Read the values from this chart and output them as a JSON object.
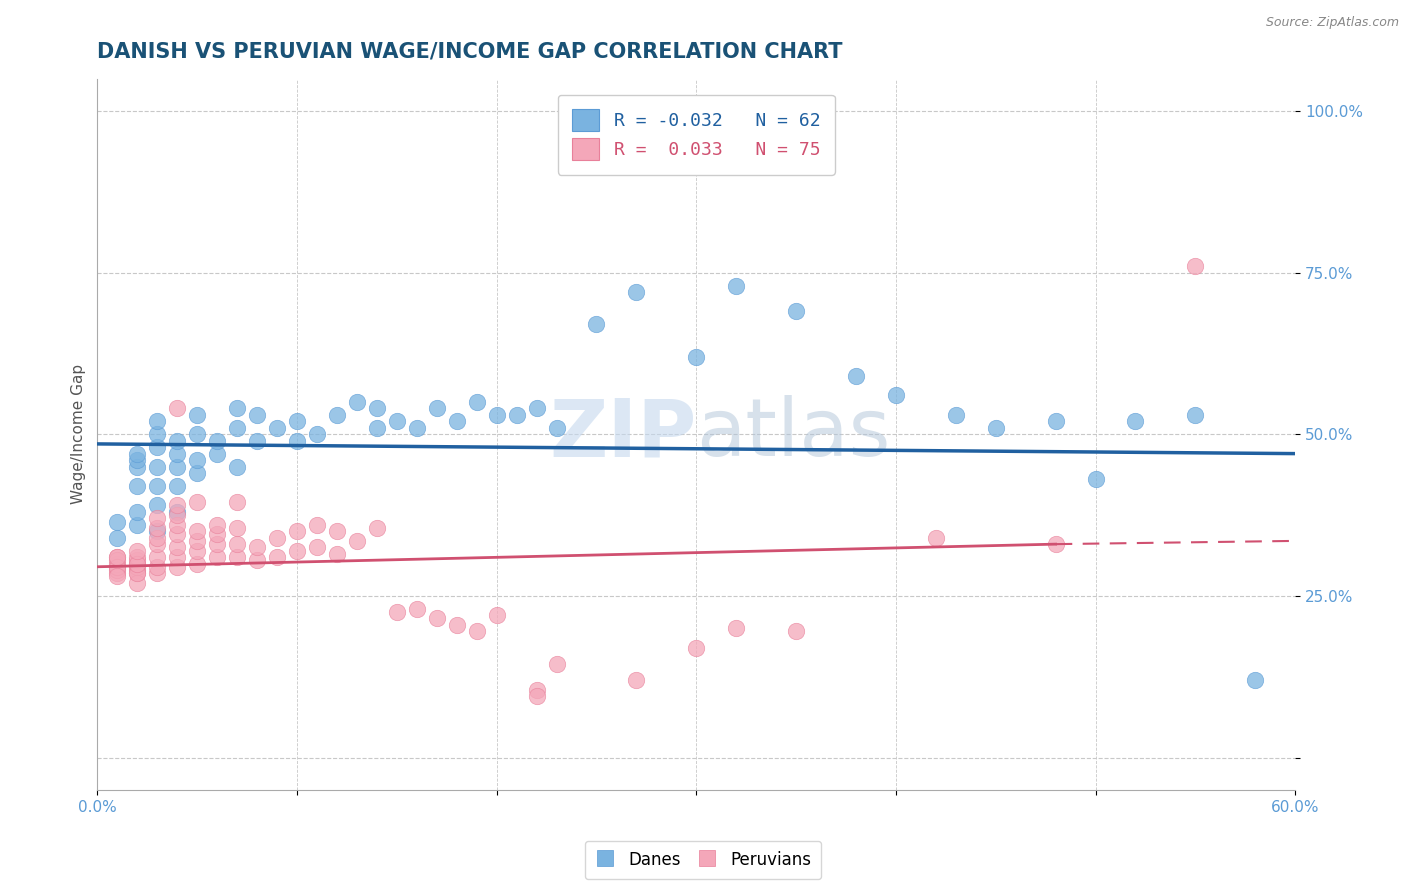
{
  "title": "DANISH VS PERUVIAN WAGE/INCOME GAP CORRELATION CHART",
  "source": "Source: ZipAtlas.com",
  "ylabel": "Wage/Income Gap",
  "xlim": [
    0.0,
    0.6
  ],
  "ylim": [
    -0.05,
    1.05
  ],
  "xticks": [
    0.0,
    0.1,
    0.2,
    0.3,
    0.4,
    0.5,
    0.6
  ],
  "xticklabels": [
    "0.0%",
    "",
    "",
    "",
    "",
    "",
    "60.0%"
  ],
  "yticks": [
    0.0,
    0.25,
    0.5,
    0.75,
    1.0
  ],
  "yticklabels": [
    "",
    "25.0%",
    "50.0%",
    "75.0%",
    "100.0%"
  ],
  "background_color": "#ffffff",
  "grid_color": "#c8c8c8",
  "title_color": "#1a5276",
  "axis_tick_color": "#5b9bd5",
  "watermark_zip": "ZIP",
  "watermark_atlas": "atlas",
  "legend_blue_r": "-0.032",
  "legend_blue_n": "62",
  "legend_pink_r": "0.033",
  "legend_pink_n": "75",
  "blue_line_y0": 0.485,
  "blue_line_y1": 0.47,
  "pink_line_y0": 0.295,
  "pink_line_y1": 0.335,
  "blue_scatter": [
    [
      0.01,
      0.365
    ],
    [
      0.01,
      0.34
    ],
    [
      0.02,
      0.36
    ],
    [
      0.02,
      0.38
    ],
    [
      0.02,
      0.42
    ],
    [
      0.02,
      0.45
    ],
    [
      0.02,
      0.46
    ],
    [
      0.02,
      0.47
    ],
    [
      0.03,
      0.35
    ],
    [
      0.03,
      0.39
    ],
    [
      0.03,
      0.42
    ],
    [
      0.03,
      0.45
    ],
    [
      0.03,
      0.48
    ],
    [
      0.03,
      0.5
    ],
    [
      0.03,
      0.52
    ],
    [
      0.04,
      0.38
    ],
    [
      0.04,
      0.42
    ],
    [
      0.04,
      0.45
    ],
    [
      0.04,
      0.47
    ],
    [
      0.04,
      0.49
    ],
    [
      0.05,
      0.44
    ],
    [
      0.05,
      0.46
    ],
    [
      0.05,
      0.5
    ],
    [
      0.05,
      0.53
    ],
    [
      0.06,
      0.47
    ],
    [
      0.06,
      0.49
    ],
    [
      0.07,
      0.45
    ],
    [
      0.07,
      0.51
    ],
    [
      0.07,
      0.54
    ],
    [
      0.08,
      0.49
    ],
    [
      0.08,
      0.53
    ],
    [
      0.09,
      0.51
    ],
    [
      0.1,
      0.49
    ],
    [
      0.1,
      0.52
    ],
    [
      0.11,
      0.5
    ],
    [
      0.12,
      0.53
    ],
    [
      0.13,
      0.55
    ],
    [
      0.14,
      0.51
    ],
    [
      0.14,
      0.54
    ],
    [
      0.15,
      0.52
    ],
    [
      0.16,
      0.51
    ],
    [
      0.17,
      0.54
    ],
    [
      0.18,
      0.52
    ],
    [
      0.19,
      0.55
    ],
    [
      0.2,
      0.53
    ],
    [
      0.21,
      0.53
    ],
    [
      0.22,
      0.54
    ],
    [
      0.23,
      0.51
    ],
    [
      0.25,
      0.67
    ],
    [
      0.27,
      0.72
    ],
    [
      0.3,
      0.62
    ],
    [
      0.32,
      0.73
    ],
    [
      0.35,
      0.69
    ],
    [
      0.38,
      0.59
    ],
    [
      0.4,
      0.56
    ],
    [
      0.43,
      0.53
    ],
    [
      0.45,
      0.51
    ],
    [
      0.48,
      0.52
    ],
    [
      0.5,
      0.43
    ],
    [
      0.52,
      0.52
    ],
    [
      0.55,
      0.53
    ],
    [
      0.58,
      0.12
    ]
  ],
  "pink_scatter": [
    [
      0.01,
      0.295
    ],
    [
      0.01,
      0.285
    ],
    [
      0.01,
      0.3
    ],
    [
      0.01,
      0.31
    ],
    [
      0.01,
      0.29
    ],
    [
      0.01,
      0.305
    ],
    [
      0.01,
      0.295
    ],
    [
      0.01,
      0.28
    ],
    [
      0.01,
      0.31
    ],
    [
      0.02,
      0.29
    ],
    [
      0.02,
      0.3
    ],
    [
      0.02,
      0.305
    ],
    [
      0.02,
      0.285
    ],
    [
      0.02,
      0.295
    ],
    [
      0.02,
      0.31
    ],
    [
      0.02,
      0.27
    ],
    [
      0.02,
      0.285
    ],
    [
      0.02,
      0.3
    ],
    [
      0.02,
      0.32
    ],
    [
      0.03,
      0.285
    ],
    [
      0.03,
      0.295
    ],
    [
      0.03,
      0.31
    ],
    [
      0.03,
      0.33
    ],
    [
      0.03,
      0.34
    ],
    [
      0.03,
      0.355
    ],
    [
      0.03,
      0.37
    ],
    [
      0.04,
      0.295
    ],
    [
      0.04,
      0.31
    ],
    [
      0.04,
      0.325
    ],
    [
      0.04,
      0.345
    ],
    [
      0.04,
      0.36
    ],
    [
      0.04,
      0.375
    ],
    [
      0.04,
      0.39
    ],
    [
      0.04,
      0.54
    ],
    [
      0.05,
      0.3
    ],
    [
      0.05,
      0.32
    ],
    [
      0.05,
      0.335
    ],
    [
      0.05,
      0.35
    ],
    [
      0.05,
      0.395
    ],
    [
      0.06,
      0.31
    ],
    [
      0.06,
      0.33
    ],
    [
      0.06,
      0.345
    ],
    [
      0.06,
      0.36
    ],
    [
      0.07,
      0.31
    ],
    [
      0.07,
      0.33
    ],
    [
      0.07,
      0.355
    ],
    [
      0.07,
      0.395
    ],
    [
      0.08,
      0.305
    ],
    [
      0.08,
      0.325
    ],
    [
      0.09,
      0.31
    ],
    [
      0.09,
      0.34
    ],
    [
      0.1,
      0.32
    ],
    [
      0.1,
      0.35
    ],
    [
      0.11,
      0.325
    ],
    [
      0.11,
      0.36
    ],
    [
      0.12,
      0.315
    ],
    [
      0.12,
      0.35
    ],
    [
      0.13,
      0.335
    ],
    [
      0.14,
      0.355
    ],
    [
      0.15,
      0.225
    ],
    [
      0.16,
      0.23
    ],
    [
      0.17,
      0.215
    ],
    [
      0.18,
      0.205
    ],
    [
      0.19,
      0.195
    ],
    [
      0.2,
      0.22
    ],
    [
      0.22,
      0.105
    ],
    [
      0.22,
      0.095
    ],
    [
      0.23,
      0.145
    ],
    [
      0.27,
      0.12
    ],
    [
      0.3,
      0.17
    ],
    [
      0.32,
      0.2
    ],
    [
      0.35,
      0.195
    ],
    [
      0.42,
      0.34
    ],
    [
      0.48,
      0.33
    ],
    [
      0.55,
      0.76
    ]
  ],
  "blue_color": "#7ab3e0",
  "blue_edge_color": "#5b9bd5",
  "pink_color": "#f4a7b9",
  "pink_edge_color": "#e8809a",
  "blue_line_color": "#2060a0",
  "pink_line_color": "#d05070",
  "title_fontsize": 15,
  "axis_label_fontsize": 11,
  "tick_fontsize": 11,
  "legend_fontsize": 13
}
